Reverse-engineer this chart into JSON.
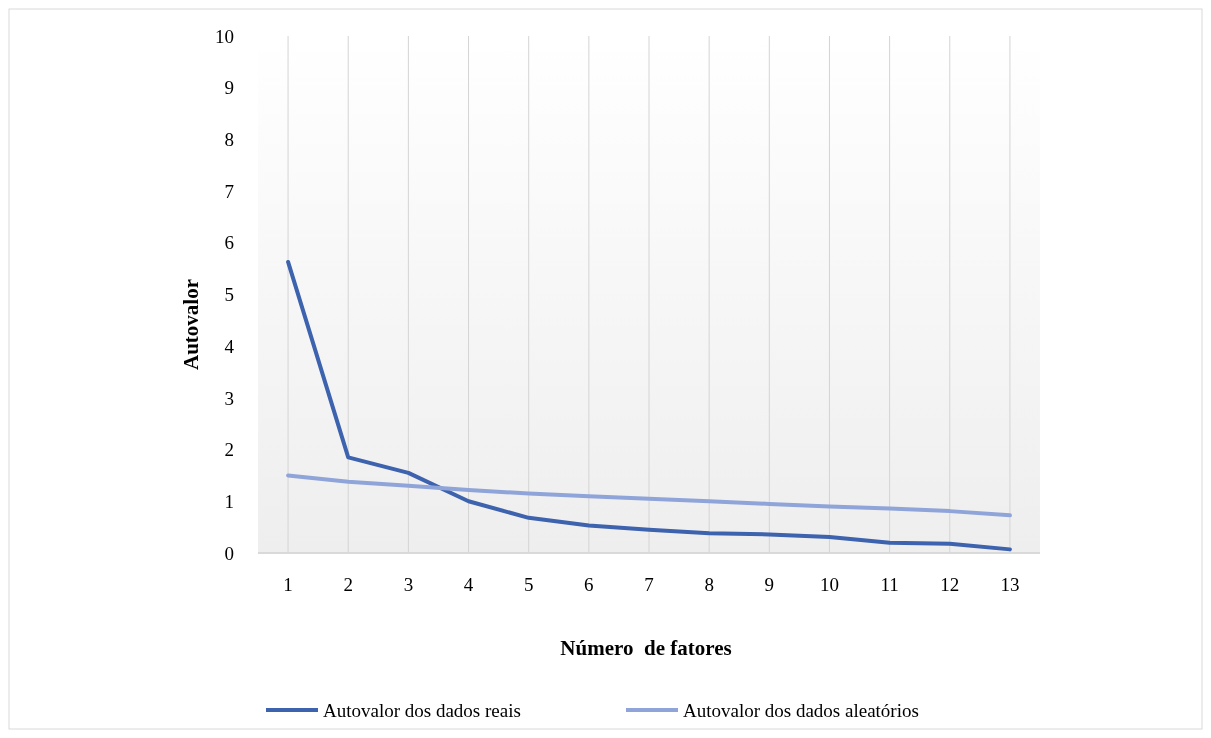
{
  "chart_data": {
    "type": "line",
    "xlabel": "Número  de fatores",
    "ylabel": "Autovalor",
    "categories": [
      "1",
      "2",
      "3",
      "4",
      "5",
      "6",
      "7",
      "8",
      "9",
      "10",
      "11",
      "12",
      "13"
    ],
    "series": [
      {
        "name": "Autovalor dos dados reais",
        "color": "#3d62ae",
        "values": [
          5.63,
          1.85,
          1.55,
          1.0,
          0.68,
          0.53,
          0.45,
          0.38,
          0.36,
          0.31,
          0.2,
          0.18,
          0.07
        ]
      },
      {
        "name": "Autovalor dos dados aleatórios",
        "color": "#8fa4d8",
        "values": [
          1.5,
          1.38,
          1.3,
          1.22,
          1.15,
          1.1,
          1.05,
          1.0,
          0.95,
          0.9,
          0.86,
          0.81,
          0.73
        ]
      }
    ],
    "ylim": [
      0,
      10
    ],
    "yticks": [
      0,
      1,
      2,
      3,
      4,
      5,
      6,
      7,
      8,
      9,
      10
    ],
    "grid": "x",
    "legend": "bottom",
    "marker": "none",
    "line_style": "solid"
  }
}
